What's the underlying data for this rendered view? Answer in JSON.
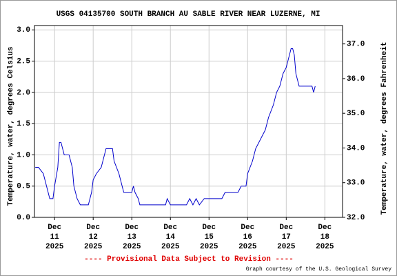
{
  "chart_data": {
    "type": "line",
    "title": "USGS 04135700 SOUTH BRANCH AU SABLE RIVER NEAR LUZERNE, MI",
    "y_label": "Temperature, water, degrees Celsius",
    "y2_label": "Temperature, water, degrees Fahrenheit",
    "annotation": "---- Provisional Data Subject to Revision ----",
    "credit": "Graph courtesy of the U.S. Geological Survey",
    "x": [
      "2025-12-10T12:00",
      "2025-12-10T14:00",
      "2025-12-10T17:00",
      "2025-12-10T18:00",
      "2025-12-10T19:00",
      "2025-12-10T20:00",
      "2025-12-10T21:00",
      "2025-12-10T23:00",
      "2025-12-11T00:00",
      "2025-12-11T02:00",
      "2025-12-11T03:00",
      "2025-12-11T04:00",
      "2025-12-11T05:00",
      "2025-12-11T06:00",
      "2025-12-11T09:00",
      "2025-12-11T11:00",
      "2025-12-11T12:00",
      "2025-12-11T14:00",
      "2025-12-11T16:00",
      "2025-12-11T21:00",
      "2025-12-11T23:00",
      "2025-12-12T00:00",
      "2025-12-12T02:00",
      "2025-12-12T05:00",
      "2025-12-12T06:00",
      "2025-12-12T08:00",
      "2025-12-12T12:00",
      "2025-12-12T13:00",
      "2025-12-12T16:00",
      "2025-12-12T18:00",
      "2025-12-12T19:00",
      "2025-12-13T00:00",
      "2025-12-13T01:00",
      "2025-12-13T02:00",
      "2025-12-13T04:00",
      "2025-12-13T05:00",
      "2025-12-13T21:00",
      "2025-12-13T22:00",
      "2025-12-14T00:00",
      "2025-12-14T10:00",
      "2025-12-14T12:00",
      "2025-12-14T14:00",
      "2025-12-14T16:00",
      "2025-12-14T18:00",
      "2025-12-14T21:00",
      "2025-12-15T08:00",
      "2025-12-15T10:00",
      "2025-12-15T18:00",
      "2025-12-15T20:00",
      "2025-12-15T23:00",
      "2025-12-16T00:00",
      "2025-12-16T03:00",
      "2025-12-16T05:00",
      "2025-12-16T07:00",
      "2025-12-16T09:00",
      "2025-12-16T11:00",
      "2025-12-16T13:00",
      "2025-12-16T16:00",
      "2025-12-16T18:00",
      "2025-12-16T20:00",
      "2025-12-16T22:00",
      "2025-12-17T00:00",
      "2025-12-17T01:00",
      "2025-12-17T03:00",
      "2025-12-17T04:00",
      "2025-12-17T05:00",
      "2025-12-17T06:00",
      "2025-12-17T08:00",
      "2025-12-17T16:00",
      "2025-12-17T17:00",
      "2025-12-17T18:00"
    ],
    "series": [
      {
        "name": "Temperature",
        "color": "#0000cc",
        "values": [
          0.8,
          0.8,
          0.7,
          0.6,
          0.5,
          0.4,
          0.3,
          0.3,
          0.5,
          0.8,
          1.2,
          1.2,
          1.1,
          1.0,
          1.0,
          0.8,
          0.5,
          0.3,
          0.2,
          0.2,
          0.4,
          0.6,
          0.7,
          0.8,
          0.9,
          1.1,
          1.1,
          0.9,
          0.7,
          0.5,
          0.4,
          0.4,
          0.5,
          0.4,
          0.3,
          0.2,
          0.2,
          0.3,
          0.2,
          0.2,
          0.3,
          0.2,
          0.3,
          0.2,
          0.3,
          0.3,
          0.4,
          0.4,
          0.5,
          0.5,
          0.7,
          0.9,
          1.1,
          1.2,
          1.3,
          1.4,
          1.6,
          1.8,
          2.0,
          2.1,
          2.3,
          2.4,
          2.5,
          2.7,
          2.7,
          2.6,
          2.3,
          2.1,
          2.1,
          2.0,
          2.1
        ]
      }
    ],
    "xlim": [
      "2025-12-10T11:30",
      "2025-12-18T11:00"
    ],
    "xticks": [
      {
        "value": "2025-12-11T00:00",
        "label": "Dec 11 2025"
      },
      {
        "value": "2025-12-12T00:00",
        "label": "Dec 12 2025"
      },
      {
        "value": "2025-12-13T00:00",
        "label": "Dec 13 2025"
      },
      {
        "value": "2025-12-14T00:00",
        "label": "Dec 14 2025"
      },
      {
        "value": "2025-12-15T00:00",
        "label": "Dec 15 2025"
      },
      {
        "value": "2025-12-16T00:00",
        "label": "Dec 16 2025"
      },
      {
        "value": "2025-12-17T00:00",
        "label": "Dec 17 2025"
      },
      {
        "value": "2025-12-18T00:00",
        "label": "Dec 18 2025"
      }
    ],
    "ylim": [
      0,
      3.07
    ],
    "yticks": [
      {
        "value": 0,
        "label": "0.0"
      },
      {
        "value": 0.5,
        "label": "0.5"
      },
      {
        "value": 1,
        "label": "1.0"
      },
      {
        "value": 1.5,
        "label": "1.5"
      },
      {
        "value": 2,
        "label": "2.0"
      },
      {
        "value": 2.5,
        "label": "2.5"
      },
      {
        "value": 3,
        "label": "3.0"
      }
    ],
    "y2lim": [
      32,
      37.53
    ],
    "y2ticks": [
      {
        "value": 32,
        "label": "32.0"
      },
      {
        "value": 33,
        "label": "33.0"
      },
      {
        "value": 34,
        "label": "34.0"
      },
      {
        "value": 35,
        "label": "35.0"
      },
      {
        "value": 36,
        "label": "36.0"
      },
      {
        "value": 37,
        "label": "37.0"
      }
    ],
    "grid": true
  }
}
